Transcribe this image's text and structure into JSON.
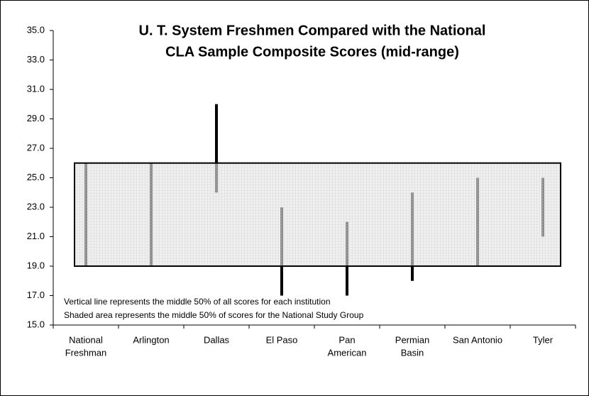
{
  "chart_data": {
    "type": "range",
    "title": [
      "U. T. System Freshmen Compared with the National",
      "CLA Sample Composite Scores (mid-range)"
    ],
    "categories": [
      [
        "National",
        "Freshman"
      ],
      [
        "Arlington"
      ],
      [
        "Dallas"
      ],
      [
        "El Paso"
      ],
      [
        "Pan",
        "American"
      ],
      [
        "Permian",
        "Basin"
      ],
      [
        "San Antonio"
      ],
      [
        "Tyler"
      ]
    ],
    "low": [
      19,
      19,
      24,
      17,
      17,
      18,
      19,
      21
    ],
    "high": [
      26,
      26,
      30,
      23,
      22,
      24,
      25,
      25
    ],
    "color": "#000000",
    "band": [
      19,
      26
    ],
    "band_color": "#e6e6e6",
    "annotations": [
      "Vertical line represents the middle 50% of all scores for each institution",
      "Shaded area represents the middle 50% of scores for the National Study Group"
    ],
    "ylim": [
      15,
      35
    ],
    "yticks": [
      {
        "value": 15,
        "label": "15.0"
      },
      {
        "value": 17,
        "label": "17.0"
      },
      {
        "value": 19,
        "label": "19.0"
      },
      {
        "value": 21,
        "label": "21.0"
      },
      {
        "value": 23,
        "label": "23.0"
      },
      {
        "value": 25,
        "label": "25.0"
      },
      {
        "value": 27,
        "label": "27.0"
      },
      {
        "value": 29,
        "label": "29.0"
      },
      {
        "value": 31,
        "label": "31.0"
      },
      {
        "value": 33,
        "label": "33.0"
      },
      {
        "value": 35,
        "label": "35.0"
      }
    ]
  }
}
